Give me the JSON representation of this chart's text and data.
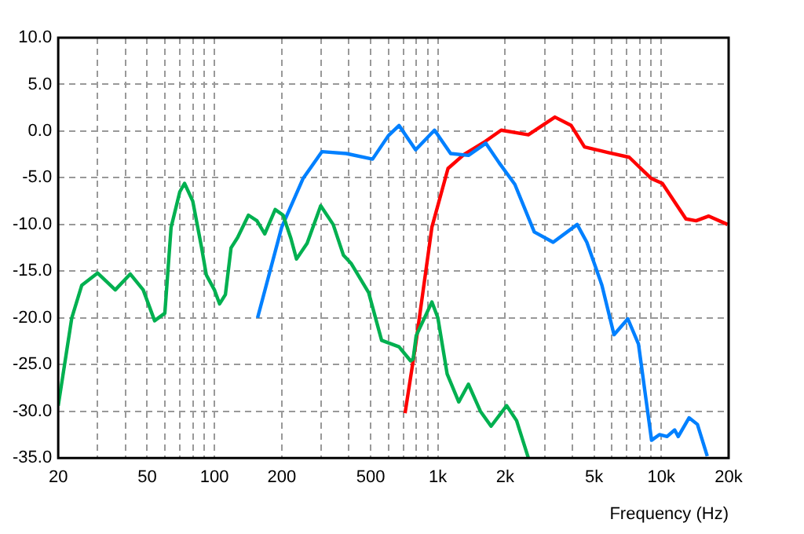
{
  "chart_data": {
    "type": "line",
    "xlabel": "Frequency (Hz)",
    "log": "x",
    "grid": true,
    "legend": false,
    "marker": "none",
    "line_style": "solid",
    "xlim": [
      20,
      20000
    ],
    "ylim": [
      -35,
      10
    ],
    "xticks": [
      20,
      {
        "value": 30,
        "label": null
      },
      {
        "value": 40,
        "label": null
      },
      50,
      {
        "value": 60,
        "label": null
      },
      {
        "value": 70,
        "label": null
      },
      {
        "value": 80,
        "label": null
      },
      {
        "value": 90,
        "label": null
      },
      100,
      200,
      {
        "value": 300,
        "label": null
      },
      {
        "value": 400,
        "label": null
      },
      500,
      {
        "value": 600,
        "label": null
      },
      {
        "value": 700,
        "label": null
      },
      {
        "value": 800,
        "label": null
      },
      {
        "value": 900,
        "label": null
      },
      {
        "value": 1000,
        "label": "1k"
      },
      {
        "value": 2000,
        "label": "2k"
      },
      {
        "value": 3000,
        "label": null
      },
      {
        "value": 4000,
        "label": null
      },
      {
        "value": 5000,
        "label": "5k"
      },
      {
        "value": 6000,
        "label": null
      },
      {
        "value": 7000,
        "label": null
      },
      {
        "value": 8000,
        "label": null
      },
      {
        "value": 9000,
        "label": null
      },
      {
        "value": 10000,
        "label": "10k"
      },
      {
        "value": 20000,
        "label": "20k"
      }
    ],
    "yticks": [
      {
        "value": -35,
        "label": "-35.0"
      },
      {
        "value": -30,
        "label": "-30.0"
      },
      {
        "value": -25,
        "label": "-25.0"
      },
      {
        "value": -20,
        "label": "-20.0"
      },
      {
        "value": -15,
        "label": "-15.0"
      },
      {
        "value": -10,
        "label": "-10.0"
      },
      {
        "value": -5,
        "label": "-5.0"
      },
      {
        "value": 0,
        "label": "0.0"
      },
      {
        "value": 5,
        "label": "5.0"
      },
      {
        "value": 10,
        "label": "10.0"
      }
    ],
    "series": [
      {
        "color": "#00b050",
        "x": [
          20,
          23,
          25.5,
          30,
          36,
          42,
          48,
          54,
          60,
          64,
          70,
          73.5,
          80,
          87.5,
          92,
          100,
          105.5,
          112,
          118.7,
          127,
          142,
          155,
          168,
          187,
          203,
          220,
          233,
          260,
          299,
          340,
          378,
          410,
          490,
          560,
          670,
          755,
          775,
          800,
          940,
          1000,
          1100,
          1240,
          1370,
          1550,
          1730,
          2030,
          2250,
          2540
        ],
        "values": [
          -29.4,
          -20,
          -16.5,
          -15.2,
          -17,
          -15.3,
          -17,
          -20.3,
          -19.5,
          -10.3,
          -6.5,
          -5.6,
          -7.5,
          -12.4,
          -15.4,
          -17,
          -18.5,
          -17.5,
          -12.5,
          -11.4,
          -9,
          -9.6,
          -11,
          -8.4,
          -9,
          -11.5,
          -13.7,
          -12,
          -8,
          -10,
          -13.3,
          -14.2,
          -17.3,
          -22.4,
          -23.1,
          -24.6,
          -24.4,
          -21.9,
          -18.3,
          -20,
          -26,
          -29,
          -27.1,
          -30,
          -31.6,
          -29.4,
          -31,
          -35
        ]
      },
      {
        "color": "#0080ff",
        "x": [
          156,
          200,
          249,
          303,
          389,
          510,
          600,
          670,
          795,
          966,
          1140,
          1370,
          1640,
          1880,
          2210,
          2700,
          3280,
          4200,
          4640,
          5420,
          6140,
          7080,
          7900,
          9040,
          9800,
          10600,
          11470,
          11900,
          13300,
          14500,
          16050
        ],
        "values": [
          -20,
          -10.3,
          -5.1,
          -2.2,
          -2.4,
          -3,
          -0.5,
          0.6,
          -2,
          0.1,
          -2.4,
          -2.6,
          -1.3,
          -3.4,
          -5.7,
          -10.8,
          -11.9,
          -10,
          -11.9,
          -16.5,
          -21.8,
          -20.1,
          -22.8,
          -33.1,
          -32.5,
          -32.7,
          -32,
          -32.7,
          -30.7,
          -31.4,
          -34.8
        ]
      },
      {
        "color": "#ff0000",
        "x": [
          713,
          796,
          940,
          1110,
          1310,
          1630,
          1920,
          2540,
          3340,
          3950,
          4530,
          5800,
          7180,
          9040,
          10100,
          12880,
          14300,
          16300,
          19800
        ],
        "values": [
          -30.2,
          -22.8,
          -10.3,
          -4,
          -2.5,
          -1.1,
          0.1,
          -0.4,
          1.5,
          0.6,
          -1.7,
          -2.3,
          -2.8,
          -5.1,
          -5.6,
          -9.4,
          -9.6,
          -9.1,
          -10
        ]
      }
    ]
  }
}
